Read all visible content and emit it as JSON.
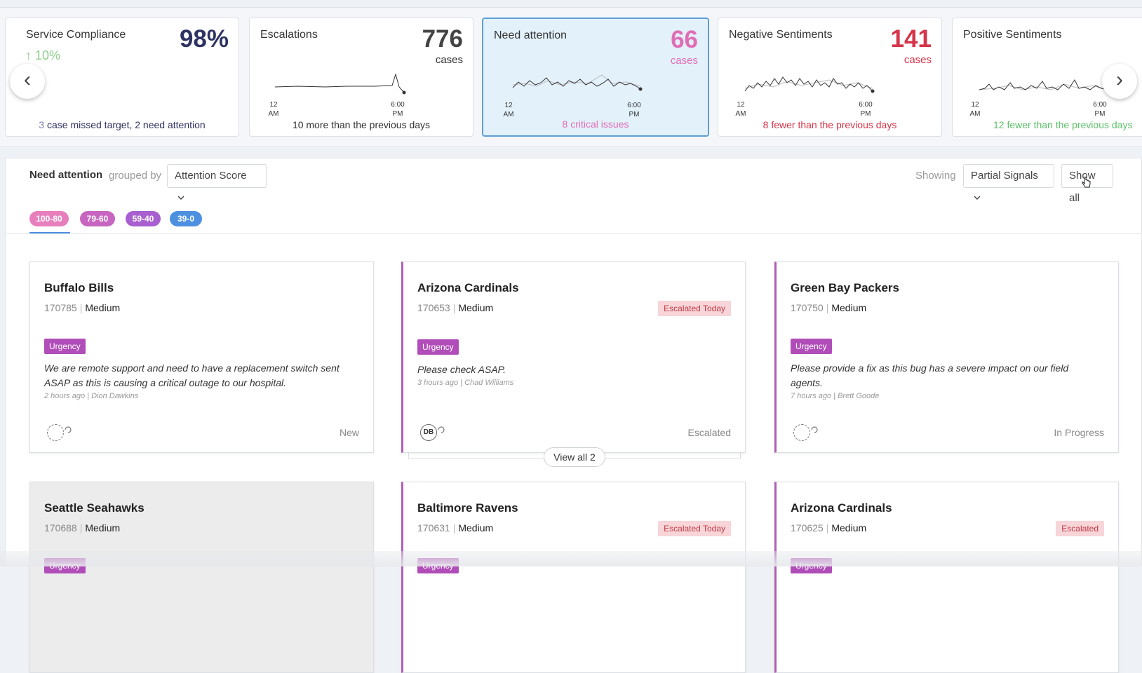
{
  "metrics": [
    {
      "title": "Service Compliance",
      "value": "98%",
      "trend": "10%",
      "footer_num": "3",
      "footer_text": " case missed target, 2 need attention"
    },
    {
      "title": "Escalations",
      "value": "776",
      "unit": "cases",
      "axis_start": [
        "12",
        "AM"
      ],
      "axis_end": [
        "6:00",
        "PM"
      ],
      "footer": "10 more than the previous days"
    },
    {
      "title": "Need attention",
      "value": "66",
      "unit": "cases",
      "axis_start": [
        "12",
        "AM"
      ],
      "axis_end": [
        "6:00",
        "PM"
      ],
      "footer": "8 critical issues"
    },
    {
      "title": "Negative Sentiments",
      "value": "141",
      "unit": "cases",
      "axis_start": [
        "12",
        "AM"
      ],
      "axis_end": [
        "6:00",
        "PM"
      ],
      "footer": "8 fewer than the previous days"
    },
    {
      "title": "Positive Sentiments",
      "axis_start": [
        "12",
        "AM"
      ],
      "axis_end": [
        "6:00",
        "PM"
      ],
      "footer": "12 fewer than the previous days"
    }
  ],
  "colors": {
    "navy": "#2f3363",
    "pink": "#e06eb6",
    "red": "#d6344a",
    "green": "#5cbf6a",
    "trend_green": "#8fcf8c",
    "accent": "#b05fb5",
    "tab_blue": "#4d90e0"
  },
  "nav": {
    "prev": "‹",
    "next": "›"
  },
  "header": {
    "title": "Need attention",
    "grouped_by": "grouped by",
    "group_select": "Attention Score",
    "showing": "Showing",
    "signal_select": "Partial Signals",
    "show_all": "Show all"
  },
  "score_tabs": [
    {
      "label": "100-80",
      "color": "#e87fbd"
    },
    {
      "label": "79-60",
      "color": "#c766c0"
    },
    {
      "label": "59-40",
      "color": "#a85fd0"
    },
    {
      "label": "39-0",
      "color": "#4d90e0"
    }
  ],
  "cases": [
    {
      "name": "Buffalo Bills",
      "id": "170785",
      "priority": "Medium",
      "tag": "Urgency",
      "message": "We are remote support and need to have a replacement switch sent ASAP as this is causing a critical outage to our hospital.",
      "byline": "2 hours ago | Dion Dawkins",
      "status": "New"
    },
    {
      "name": "Arizona Cardinals",
      "id": "170653",
      "priority": "Medium",
      "badge": "Escalated Today",
      "tag": "Urgency",
      "message": "Please check ASAP.",
      "byline": "3 hours ago | Chad Williams",
      "avatar": "DB",
      "status": "Escalated"
    },
    {
      "name": "Green Bay Packers",
      "id": "170750",
      "priority": "Medium",
      "tag": "Urgency",
      "message": "Please provide a fix as this bug has a severe impact on our field agents.",
      "byline": "7 hours ago | Brett Goode",
      "status": "In Progress"
    },
    {
      "name": "Seattle Seahawks",
      "id": "170688",
      "priority": "Medium",
      "tag": "Urgency"
    },
    {
      "name": "Baltimore Ravens",
      "id": "170631",
      "priority": "Medium",
      "badge": "Escalated Today",
      "tag": "Urgency"
    },
    {
      "name": "Arizona Cardinals",
      "id": "170625",
      "priority": "Medium",
      "badge": "Escalated",
      "tag": "Urgency"
    }
  ],
  "view_all": "View all 2"
}
